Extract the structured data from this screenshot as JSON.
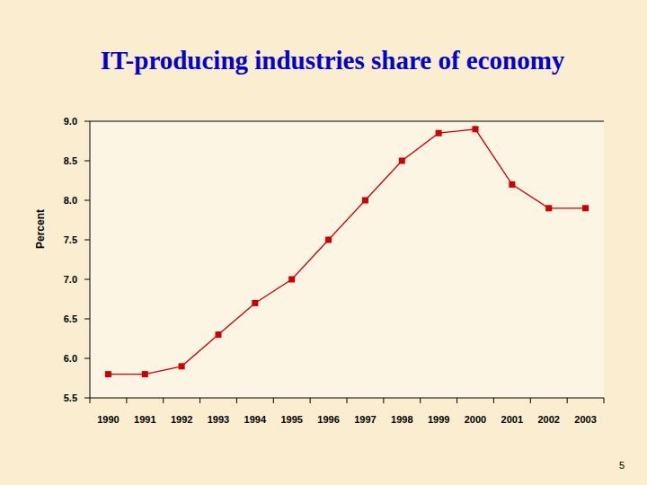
{
  "chart_data": {
    "type": "line",
    "title": "IT-producing industries share of economy",
    "y_label": "Percent",
    "footer": "5",
    "categories": [
      "1990",
      "1991",
      "1992",
      "1993",
      "1994",
      "1995",
      "1996",
      "1997",
      "1998",
      "1999",
      "2000",
      "2001",
      "2002",
      "2003"
    ],
    "values": [
      5.8,
      5.8,
      5.9,
      6.3,
      6.7,
      7.0,
      7.5,
      8.0,
      8.5,
      8.85,
      8.9,
      8.2,
      7.9,
      7.9
    ],
    "color": "#cc0000",
    "marker": "square",
    "line_style": "solid",
    "ylim": [
      5.5,
      9.0
    ],
    "yticks": [
      5.5,
      {
        "value": 6,
        "label": "6.0"
      },
      6.5,
      {
        "value": 7,
        "label": "7.0"
      },
      7.5,
      {
        "value": 8,
        "label": "8.0"
      },
      8.5,
      {
        "value": 9,
        "label": "9.0"
      }
    ],
    "grid": false
  }
}
